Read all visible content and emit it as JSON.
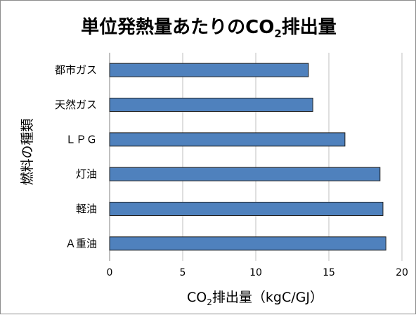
{
  "chart_data": {
    "type": "bar",
    "orientation": "horizontal",
    "title_main": "単位発熱量あたりのCO",
    "title_sub": "2",
    "title_tail": "排出量",
    "categories": [
      "都市ガス",
      "天然ガス",
      "ＬＰＧ",
      "灯油",
      "軽油",
      "Ａ重油"
    ],
    "values": [
      13.6,
      13.9,
      16.1,
      18.5,
      18.7,
      18.9
    ],
    "xlabel_main": "CO",
    "xlabel_sub": "2",
    "xlabel_tail": "排出量（kgC/GJ）",
    "ylabel": "燃料の種類",
    "xlim": [
      0,
      20
    ],
    "xticks": [
      "0",
      "5",
      "10",
      "15",
      "20"
    ],
    "grid": true,
    "bar_color": "#4f81bd",
    "bar_edge_color": "#1f1f1f",
    "grid_color": "#bfbfbf"
  }
}
